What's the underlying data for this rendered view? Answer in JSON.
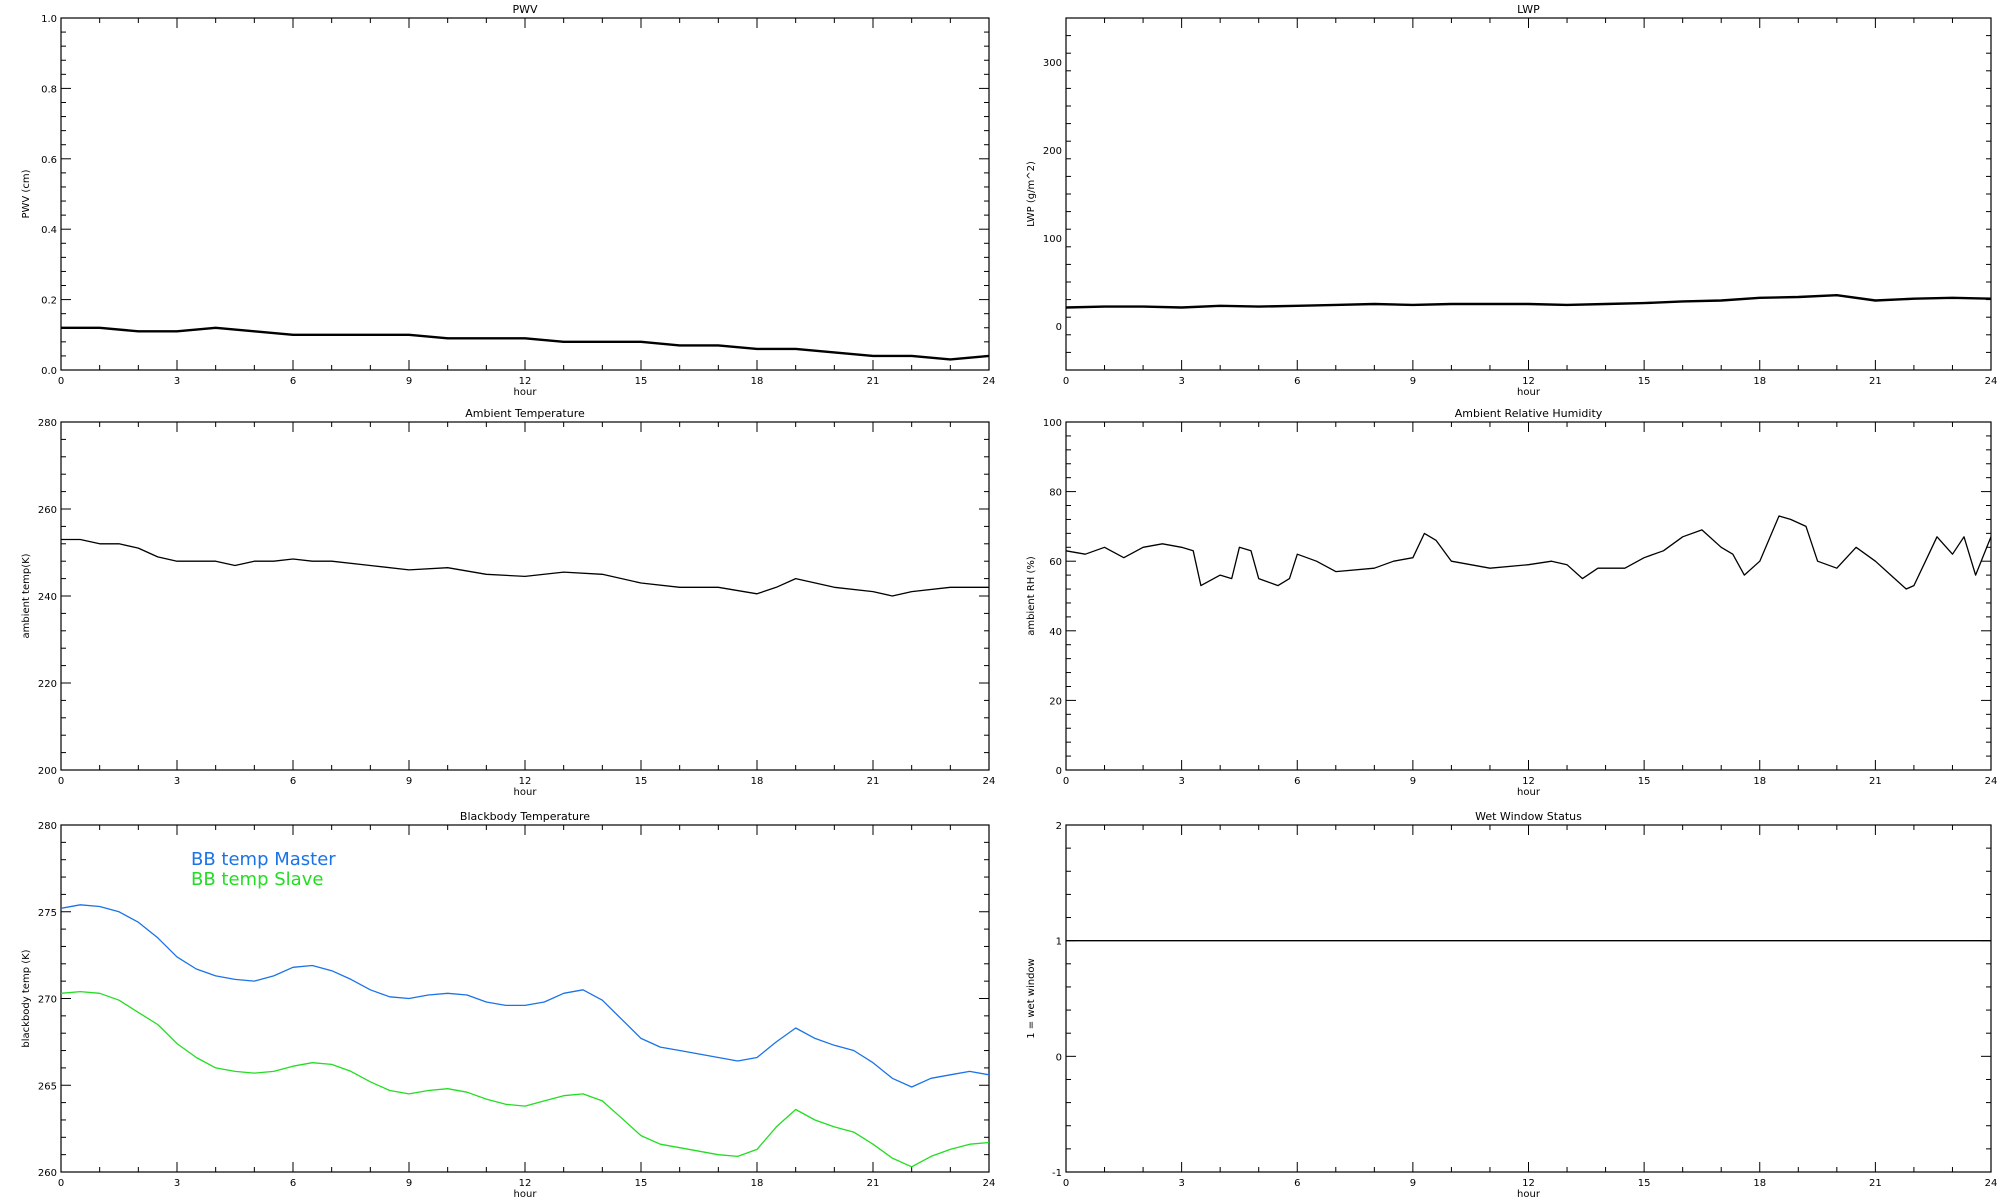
{
  "chart_data": [
    {
      "type": "line",
      "title": "PWV",
      "xlabel": "hour",
      "ylabel": "PWV (cm)",
      "xlim": [
        0,
        24
      ],
      "ylim": [
        0,
        1
      ],
      "xticks": [
        0,
        3,
        6,
        9,
        12,
        15,
        18,
        21,
        24
      ],
      "xtick_labels": [
        "0",
        "3",
        "6",
        "9",
        "12",
        "15",
        "18",
        "21",
        "24"
      ],
      "yticks": [
        0,
        0.2,
        0.4,
        0.6,
        0.8,
        1.0
      ],
      "ytick_labels": [
        "0.0",
        "0.2",
        "0.4",
        "0.6",
        "0.8",
        "1.0"
      ],
      "grid": false,
      "series": [
        {
          "color": "#000000",
          "x": [
            0,
            1,
            2,
            3,
            4,
            5,
            6,
            7,
            8,
            9,
            10,
            11,
            12,
            13,
            14,
            15,
            16,
            17,
            18,
            19,
            20,
            21,
            22,
            23,
            24
          ],
          "y": [
            0.12,
            0.12,
            0.11,
            0.11,
            0.12,
            0.11,
            0.1,
            0.1,
            0.1,
            0.1,
            0.09,
            0.09,
            0.09,
            0.08,
            0.08,
            0.08,
            0.07,
            0.07,
            0.06,
            0.06,
            0.05,
            0.04,
            0.04,
            0.03,
            0.04
          ]
        }
      ]
    },
    {
      "type": "line",
      "title": "LWP",
      "xlabel": "hour",
      "ylabel": "LWP (g/m^2)",
      "xlim": [
        0,
        24
      ],
      "ylim": [
        -50,
        350
      ],
      "xticks": [
        0,
        3,
        6,
        9,
        12,
        15,
        18,
        21,
        24
      ],
      "xtick_labels": [
        "0",
        "3",
        "6",
        "9",
        "12",
        "15",
        "18",
        "21",
        "24"
      ],
      "yticks": [
        0,
        100,
        200,
        300
      ],
      "ytick_labels": [
        "0",
        "100",
        "200",
        "300"
      ],
      "grid": false,
      "series": [
        {
          "color": "#000000",
          "x": [
            0,
            1,
            2,
            3,
            4,
            5,
            6,
            7,
            8,
            9,
            10,
            11,
            12,
            13,
            14,
            15,
            16,
            17,
            18,
            19,
            20,
            21,
            22,
            23,
            24
          ],
          "y": [
            21,
            22,
            22,
            21,
            23,
            22,
            23,
            24,
            25,
            24,
            25,
            25,
            25,
            24,
            25,
            26,
            28,
            29,
            32,
            33,
            35,
            29,
            31,
            32,
            31
          ]
        }
      ]
    },
    {
      "type": "line",
      "title": "Ambient Temperature",
      "xlabel": "hour",
      "ylabel": "ambient temp(K)",
      "xlim": [
        0,
        24
      ],
      "ylim": [
        200,
        280
      ],
      "xticks": [
        0,
        3,
        6,
        9,
        12,
        15,
        18,
        21,
        24
      ],
      "xtick_labels": [
        "0",
        "3",
        "6",
        "9",
        "12",
        "15",
        "18",
        "21",
        "24"
      ],
      "yticks": [
        200,
        220,
        240,
        260,
        280
      ],
      "ytick_labels": [
        "200",
        "220",
        "240",
        "260",
        "280"
      ],
      "grid": false,
      "series": [
        {
          "color": "#000000",
          "x": [
            0,
            0.5,
            1,
            1.5,
            2,
            2.5,
            3,
            3.5,
            4,
            4.5,
            5,
            5.5,
            6,
            6.5,
            7,
            8,
            9,
            10,
            11,
            12,
            13,
            14,
            15,
            16,
            17,
            18,
            18.5,
            19,
            20,
            21,
            21.5,
            22,
            23,
            24
          ],
          "y": [
            253,
            253,
            252,
            252,
            251,
            249,
            248,
            248,
            248,
            247,
            248,
            248,
            248.5,
            248,
            248,
            247,
            246,
            246.5,
            245,
            244.5,
            245.5,
            245,
            243,
            242,
            242,
            240.5,
            242,
            244,
            242,
            241,
            240,
            241,
            242,
            242
          ]
        }
      ]
    },
    {
      "type": "line",
      "title": "Ambient Relative Humidity",
      "xlabel": "hour",
      "ylabel": "ambient RH (%)",
      "xlim": [
        0,
        24
      ],
      "ylim": [
        0,
        100
      ],
      "xticks": [
        0,
        3,
        6,
        9,
        12,
        15,
        18,
        21,
        24
      ],
      "xtick_labels": [
        "0",
        "3",
        "6",
        "9",
        "12",
        "15",
        "18",
        "21",
        "24"
      ],
      "yticks": [
        0,
        20,
        40,
        60,
        80,
        100
      ],
      "ytick_labels": [
        "0",
        "20",
        "40",
        "60",
        "80",
        "100"
      ],
      "grid": false,
      "series": [
        {
          "color": "#000000",
          "x": [
            0,
            0.5,
            1,
            1.5,
            2,
            2.5,
            3,
            3.3,
            3.5,
            4,
            4.3,
            4.5,
            4.8,
            5,
            5.5,
            5.8,
            6,
            6.5,
            7,
            8,
            8.5,
            9,
            9.3,
            9.6,
            10,
            11,
            12,
            12.6,
            13,
            13.4,
            13.8,
            14.5,
            15,
            15.5,
            16,
            16.5,
            17,
            17.3,
            17.6,
            18,
            18.5,
            18.8,
            19.2,
            19.5,
            20,
            20.5,
            21,
            21.4,
            21.8,
            22,
            22.3,
            22.6,
            23,
            23.3,
            23.6,
            24
          ],
          "y": [
            63,
            62,
            64,
            61,
            64,
            65,
            64,
            63,
            53,
            56,
            55,
            64,
            63,
            55,
            53,
            55,
            62,
            60,
            57,
            58,
            60,
            61,
            68,
            66,
            60,
            58,
            59,
            60,
            59,
            55,
            58,
            58,
            61,
            63,
            67,
            69,
            64,
            62,
            56,
            60,
            73,
            72,
            70,
            60,
            58,
            64,
            60,
            56,
            52,
            53,
            60,
            67,
            62,
            67,
            56,
            67
          ]
        }
      ]
    },
    {
      "type": "line",
      "title": "Blackbody Temperature",
      "xlabel": "hour",
      "ylabel": "blackbody temp (K)",
      "xlim": [
        0,
        24
      ],
      "ylim": [
        260,
        280
      ],
      "xticks": [
        0,
        3,
        6,
        9,
        12,
        15,
        18,
        21,
        24
      ],
      "xtick_labels": [
        "0",
        "3",
        "6",
        "9",
        "12",
        "15",
        "18",
        "21",
        "24"
      ],
      "yticks": [
        260,
        265,
        270,
        275,
        280
      ],
      "ytick_labels": [
        "260",
        "265",
        "270",
        "275",
        "280"
      ],
      "grid": false,
      "legend": "top-left",
      "series": [
        {
          "name": "BB temp Master",
          "color": "#1a73e8",
          "x": [
            0,
            0.5,
            1,
            1.5,
            2,
            2.5,
            3,
            3.5,
            4,
            4.5,
            5,
            5.5,
            6,
            6.5,
            7,
            7.5,
            8,
            8.5,
            9,
            9.5,
            10,
            10.5,
            11,
            11.5,
            12,
            12.5,
            13,
            13.5,
            14,
            14.5,
            15,
            15.5,
            16,
            16.5,
            17,
            17.5,
            18,
            18.5,
            19,
            19.5,
            20,
            20.5,
            21,
            21.5,
            22,
            22.5,
            23,
            23.5,
            24
          ],
          "y": [
            275.2,
            275.4,
            275.3,
            275.0,
            274.4,
            273.5,
            272.4,
            271.7,
            271.3,
            271.1,
            271.0,
            271.3,
            271.8,
            271.9,
            271.6,
            271.1,
            270.5,
            270.1,
            270.0,
            270.2,
            270.3,
            270.2,
            269.8,
            269.6,
            269.6,
            269.8,
            270.3,
            270.5,
            269.9,
            268.8,
            267.7,
            267.2,
            267.0,
            266.8,
            266.6,
            266.4,
            266.6,
            267.5,
            268.3,
            267.7,
            267.3,
            267.0,
            266.3,
            265.4,
            264.9,
            265.4,
            265.6,
            265.8,
            265.6
          ]
        },
        {
          "name": "BB temp Slave",
          "color": "#22dd22",
          "x": [
            0,
            0.5,
            1,
            1.5,
            2,
            2.5,
            3,
            3.5,
            4,
            4.5,
            5,
            5.5,
            6,
            6.5,
            7,
            7.5,
            8,
            8.5,
            9,
            9.5,
            10,
            10.5,
            11,
            11.5,
            12,
            12.5,
            13,
            13.5,
            14,
            14.5,
            15,
            15.5,
            16,
            16.5,
            17,
            17.5,
            18,
            18.5,
            19,
            19.5,
            20,
            20.5,
            21,
            21.5,
            22,
            22.5,
            23,
            23.5,
            24
          ],
          "y": [
            270.3,
            270.4,
            270.3,
            269.9,
            269.2,
            268.5,
            267.4,
            266.6,
            266.0,
            265.8,
            265.7,
            265.8,
            266.1,
            266.3,
            266.2,
            265.8,
            265.2,
            264.7,
            264.5,
            264.7,
            264.8,
            264.6,
            264.2,
            263.9,
            263.8,
            264.1,
            264.4,
            264.5,
            264.1,
            263.1,
            262.1,
            261.6,
            261.4,
            261.2,
            261.0,
            260.9,
            261.3,
            262.6,
            263.6,
            263.0,
            262.6,
            262.3,
            261.6,
            260.8,
            260.3,
            260.9,
            261.3,
            261.6,
            261.7
          ]
        }
      ]
    },
    {
      "type": "line",
      "title": "Wet Window Status",
      "xlabel": "hour",
      "ylabel": "1 = wet window",
      "xlim": [
        0,
        24
      ],
      "ylim": [
        -1,
        2
      ],
      "xticks": [
        0,
        3,
        6,
        9,
        12,
        15,
        18,
        21,
        24
      ],
      "xtick_labels": [
        "0",
        "3",
        "6",
        "9",
        "12",
        "15",
        "18",
        "21",
        "24"
      ],
      "yticks": [
        -1,
        0,
        1,
        2
      ],
      "ytick_labels": [
        "-1",
        "0",
        "1",
        "2"
      ],
      "grid": false,
      "series": [
        {
          "color": "#000000",
          "x": [
            0,
            24
          ],
          "y": [
            1,
            1
          ]
        }
      ]
    }
  ]
}
